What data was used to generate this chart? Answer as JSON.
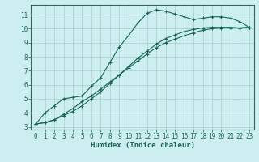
{
  "xlabel": "Humidex (Indice chaleur)",
  "background_color": "#cceef0",
  "grid_color": "#aacccc",
  "line_color": "#1a6655",
  "spine_color": "#336655",
  "xlim": [
    -0.5,
    23.5
  ],
  "ylim": [
    2.8,
    11.7
  ],
  "xticks": [
    0,
    1,
    2,
    3,
    4,
    5,
    6,
    7,
    8,
    9,
    10,
    11,
    12,
    13,
    14,
    15,
    16,
    17,
    18,
    19,
    20,
    21,
    22,
    23
  ],
  "yticks": [
    3,
    4,
    5,
    6,
    7,
    8,
    9,
    10,
    11
  ],
  "series1_x": [
    0,
    1,
    2,
    3,
    4,
    5,
    6,
    7,
    8,
    9,
    10,
    11,
    12,
    13,
    14,
    15,
    16,
    17,
    18,
    19,
    20,
    21,
    22,
    23
  ],
  "series1_y": [
    3.2,
    4.0,
    4.5,
    5.0,
    5.1,
    5.2,
    5.9,
    6.5,
    7.6,
    8.7,
    9.5,
    10.4,
    11.1,
    11.35,
    11.25,
    11.05,
    10.85,
    10.65,
    10.75,
    10.85,
    10.85,
    10.75,
    10.5,
    10.1
  ],
  "series2_x": [
    0,
    1,
    2,
    3,
    4,
    5,
    6,
    7,
    8,
    9,
    10,
    11,
    12,
    13,
    14,
    15,
    16,
    17,
    18,
    19,
    20,
    21,
    22,
    23
  ],
  "series2_y": [
    3.2,
    3.3,
    3.5,
    3.8,
    4.1,
    4.5,
    5.0,
    5.5,
    6.1,
    6.7,
    7.3,
    7.9,
    8.4,
    8.9,
    9.3,
    9.55,
    9.8,
    9.95,
    10.05,
    10.1,
    10.1,
    10.1,
    10.05,
    10.1
  ],
  "series3_x": [
    0,
    1,
    2,
    3,
    4,
    5,
    6,
    7,
    8,
    9,
    10,
    11,
    12,
    13,
    14,
    15,
    16,
    17,
    18,
    19,
    20,
    21,
    22,
    23
  ],
  "series3_y": [
    3.2,
    3.3,
    3.5,
    3.9,
    4.3,
    4.8,
    5.2,
    5.7,
    6.2,
    6.7,
    7.2,
    7.7,
    8.2,
    8.65,
    9.0,
    9.25,
    9.5,
    9.7,
    9.9,
    10.0,
    10.05,
    10.05,
    10.05,
    10.1
  ],
  "marker": "+",
  "markersize": 3.5,
  "linewidth": 0.8,
  "tick_labelsize": 5.5
}
